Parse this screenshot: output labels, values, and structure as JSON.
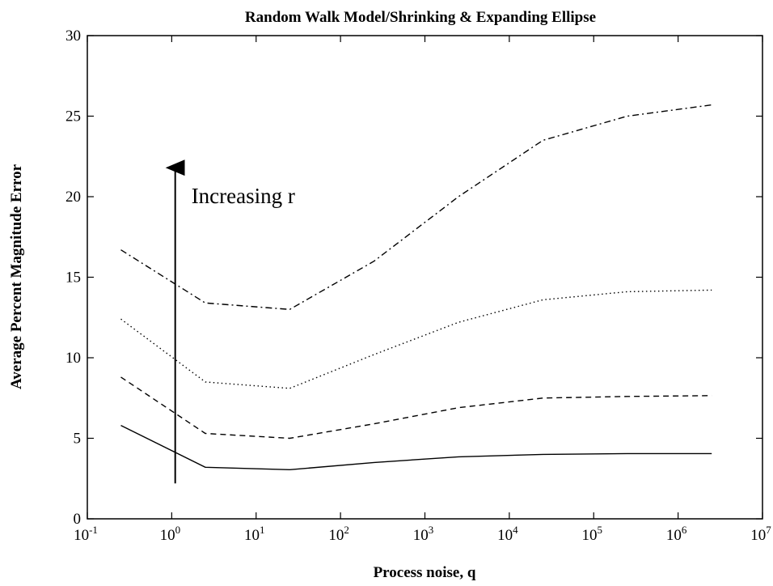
{
  "chart_data": {
    "type": "line",
    "title": "Random Walk Model/Shrinking & Expanding Ellipse",
    "xlabel": "Process noise, q",
    "ylabel": "Average Percent Magnitude Error",
    "x_scale": "log",
    "xlim": [
      0.1,
      10000000
    ],
    "ylim": [
      0,
      30
    ],
    "x_ticks": [
      {
        "base": "10",
        "exp": "-1"
      },
      {
        "base": "10",
        "exp": "0"
      },
      {
        "base": "10",
        "exp": "1"
      },
      {
        "base": "10",
        "exp": "2"
      },
      {
        "base": "10",
        "exp": "3"
      },
      {
        "base": "10",
        "exp": "4"
      },
      {
        "base": "10",
        "exp": "5"
      },
      {
        "base": "10",
        "exp": "6"
      },
      {
        "base": "10",
        "exp": "7"
      }
    ],
    "y_ticks": [
      "0",
      "5",
      "10",
      "15",
      "20",
      "25",
      "30"
    ],
    "grid": false,
    "legend": "none",
    "x": [
      0.25,
      2.5,
      25,
      250,
      2500,
      25000,
      250000,
      2500000
    ],
    "series": [
      {
        "style": "solid",
        "values": [
          5.8,
          3.2,
          3.05,
          3.5,
          3.85,
          4.0,
          4.05,
          4.05
        ]
      },
      {
        "style": "dashed",
        "values": [
          8.8,
          5.3,
          5.0,
          5.9,
          6.9,
          7.5,
          7.6,
          7.65
        ]
      },
      {
        "style": "dotted",
        "values": [
          12.4,
          8.5,
          8.1,
          10.2,
          12.2,
          13.6,
          14.1,
          14.2
        ]
      },
      {
        "style": "dashdot",
        "values": [
          16.7,
          13.4,
          13.0,
          16.0,
          20.0,
          23.5,
          25.0,
          25.7
        ]
      }
    ],
    "annotations": [
      {
        "text": "Increasing r",
        "arrow": {
          "x": 1.1,
          "y_from": 2.2,
          "y_to": 22.3
        }
      }
    ]
  }
}
